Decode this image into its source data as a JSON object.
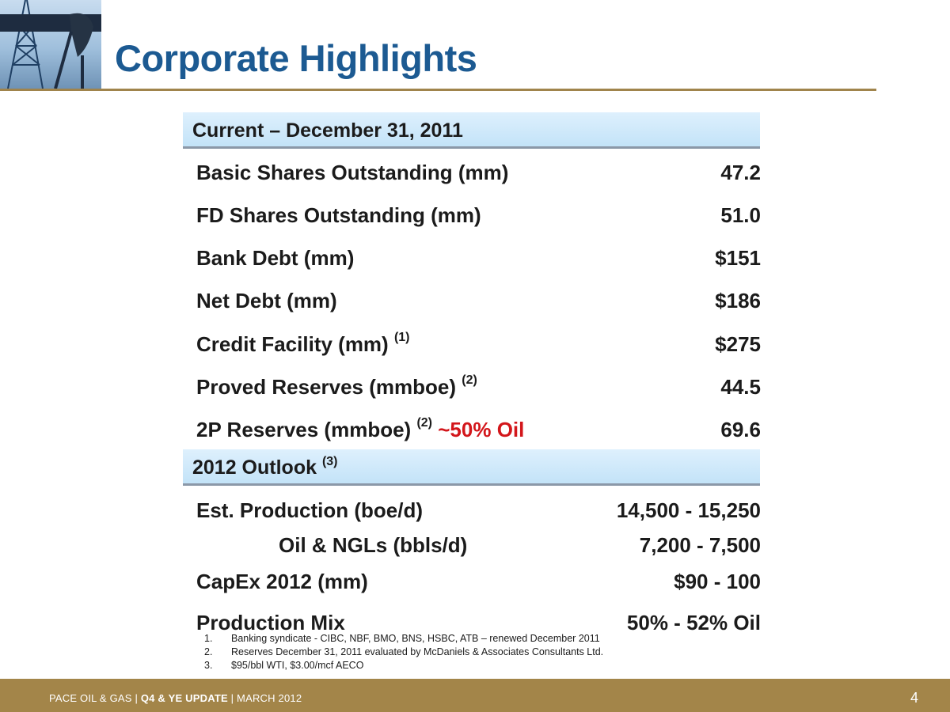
{
  "header": {
    "title": "Corporate Highlights"
  },
  "current": {
    "heading": "Current – December 31, 2011",
    "rows": [
      {
        "label": "Basic Shares Outstanding (mm)",
        "sup": "",
        "note": "",
        "value": "47.2"
      },
      {
        "label": "FD Shares Outstanding (mm)",
        "sup": "",
        "note": "",
        "value": "51.0"
      },
      {
        "label": "Bank Debt (mm)",
        "sup": "",
        "note": "",
        "value": "$151"
      },
      {
        "label": "Net Debt (mm)",
        "sup": "",
        "note": "",
        "value": "$186"
      },
      {
        "label": "Credit Facility (mm)",
        "sup": "(1)",
        "note": "",
        "value": "$275"
      },
      {
        "label": "Proved Reserves (mmboe)",
        "sup": "(2)",
        "note": "",
        "value": "44.5"
      },
      {
        "label": "2P Reserves (mmboe)",
        "sup": "(2)",
        "note": "~50% Oil",
        "value": "69.6"
      }
    ]
  },
  "outlook": {
    "heading": "2012 Outlook",
    "heading_sup": "(3)",
    "rows": [
      {
        "label": "Est. Production (boe/d)",
        "value": "14,500 - 15,250"
      },
      {
        "label": "Oil & NGLs (bbls/d)",
        "value": "7,200 - 7,500"
      },
      {
        "label": "CapEx 2012 (mm)",
        "value": "$90 - 100"
      },
      {
        "label": "Production Mix",
        "value": "50% - 52% Oil"
      }
    ]
  },
  "footnotes": [
    {
      "num": "1.",
      "text": "Banking syndicate  - CIBC, NBF, BMO, BNS, HSBC, ATB – renewed December 2011"
    },
    {
      "num": "2.",
      "text": "Reserves December 31, 2011 evaluated by McDaniels & Associates Consultants Ltd."
    },
    {
      "num": "3.",
      "text": "$95/bbl WTI, $3.00/mcf AECO"
    }
  ],
  "footer": {
    "company": "PACE OIL & GAS",
    "separator": "|",
    "update": "Q4 & YE UPDATE",
    "date": "MARCH 2012",
    "page": "4"
  },
  "colors": {
    "title": "#1c5a92",
    "accent_gold": "#a38549",
    "header_band": "#c3e3f8",
    "highlight_red": "#d3161b"
  },
  "icons": {
    "logo": "oil-derrick-pumpjack-icon"
  }
}
